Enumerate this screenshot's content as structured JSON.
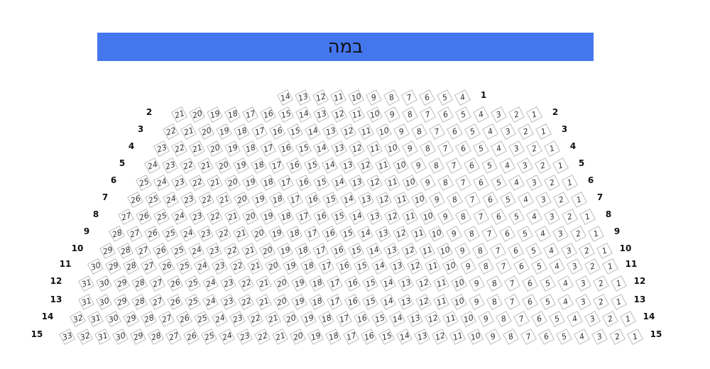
{
  "stage": {
    "label": "במה",
    "color": "#4476EE"
  },
  "rows": [
    {
      "label": "1",
      "from": 4,
      "to": 14,
      "left_label": false
    },
    {
      "label": "2",
      "from": 1,
      "to": 21,
      "left_label": true
    },
    {
      "label": "3",
      "from": 1,
      "to": 22,
      "left_label": true
    },
    {
      "label": "4",
      "from": 1,
      "to": 23,
      "left_label": true
    },
    {
      "label": "5",
      "from": 1,
      "to": 24,
      "left_label": true
    },
    {
      "label": "6",
      "from": 1,
      "to": 25,
      "left_label": true
    },
    {
      "label": "7",
      "from": 1,
      "to": 26,
      "left_label": true
    },
    {
      "label": "8",
      "from": 1,
      "to": 27,
      "left_label": true
    },
    {
      "label": "9",
      "from": 1,
      "to": 28,
      "left_label": true
    },
    {
      "label": "10",
      "from": 1,
      "to": 29,
      "left_label": true
    },
    {
      "label": "11",
      "from": 1,
      "to": 30,
      "left_label": true
    },
    {
      "label": "12",
      "from": 1,
      "to": 31,
      "left_label": true
    },
    {
      "label": "13",
      "from": 1,
      "to": 31,
      "left_label": true
    },
    {
      "label": "14",
      "from": 1,
      "to": 32,
      "left_label": true
    },
    {
      "label": "15",
      "from": 1,
      "to": 33,
      "left_label": true
    }
  ]
}
